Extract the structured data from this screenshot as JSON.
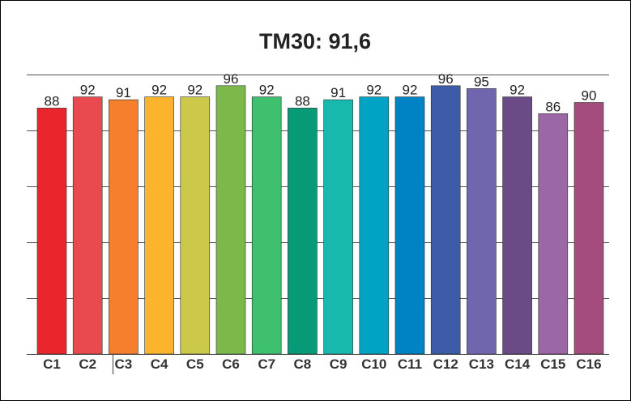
{
  "chart_data": {
    "type": "bar",
    "title": "TM30: 91,6",
    "xlabel": "",
    "ylabel": "",
    "categories": [
      "C1",
      "C2",
      "C3",
      "C4",
      "C5",
      "C6",
      "C7",
      "C8",
      "C9",
      "C10",
      "C11",
      "C12",
      "C13",
      "C14",
      "C15",
      "C16"
    ],
    "values": [
      88,
      92,
      91,
      92,
      92,
      96,
      92,
      88,
      91,
      92,
      92,
      96,
      95,
      92,
      86,
      90
    ],
    "ylim": [
      0,
      100
    ],
    "grid": true,
    "legend": "none",
    "data_labels": true,
    "colors": [
      "#e8262c",
      "#e84a4f",
      "#f57f2d",
      "#fbb42b",
      "#cbc84a",
      "#7db84b",
      "#3ec06e",
      "#079a76",
      "#17b9ad",
      "#00a3c4",
      "#0083c4",
      "#3c5caa",
      "#6f66ae",
      "#6a4b86",
      "#9b67a5",
      "#a54c7e"
    ]
  }
}
